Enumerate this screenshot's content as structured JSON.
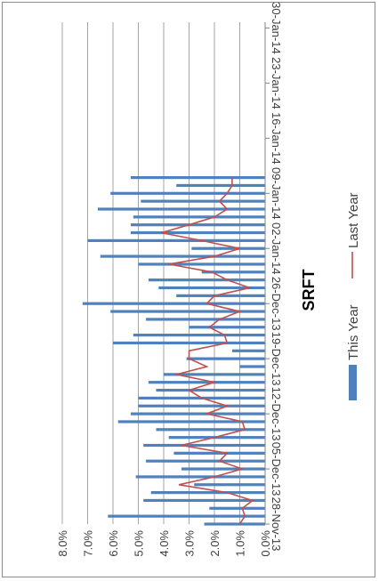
{
  "chart_data": {
    "type": "bar",
    "title": "SRFT",
    "orientation": "rotated-90",
    "x_ticks": [
      "28-Nov-13",
      "05-Dec-13",
      "12-Dec-13",
      "19-Dec-13",
      "26-Dec-13",
      "02-Jan-14",
      "09-Jan-14",
      "16-Jan-14",
      "23-Jan-14",
      "30-Jan-14"
    ],
    "y_ticks": [
      "0.0%",
      "1.0%",
      "2.0%",
      "3.0%",
      "4.0%",
      "5.0%",
      "6.0%",
      "7.0%",
      "8.0%"
    ],
    "ylim": [
      0,
      8
    ],
    "grid": true,
    "legend_position": "bottom",
    "colors": {
      "this_year": "#4f81bd",
      "last_year": "#c0504d",
      "grid": "#a6a6a6",
      "axis": "#868686",
      "text": "#404040"
    },
    "series": [
      {
        "name": "This Year",
        "type": "bar",
        "values": [
          2.4,
          6.2,
          2.2,
          4.8,
          4.5,
          2.8,
          5.1,
          3.3,
          4.7,
          3.6,
          4.8,
          3.8,
          4.3,
          5.8,
          5.3,
          5.0,
          5.0,
          4.3,
          4.6,
          4.0,
          1.0,
          3.1,
          1.3,
          6.0,
          5.2,
          3.0,
          4.7,
          6.1,
          7.2,
          3.5,
          4.2,
          4.6,
          2.5,
          5.0,
          6.5,
          2.9,
          7.0,
          5.3,
          5.3,
          5.2,
          6.6,
          4.9,
          6.1,
          3.5,
          5.3
        ]
      },
      {
        "name": "Last Year",
        "type": "line",
        "values": [
          1.0,
          0.8,
          0.9,
          0.5,
          1.5,
          3.4,
          2.0,
          0.9,
          1.8,
          1.5,
          3.3,
          2.0,
          0.8,
          0.9,
          2.3,
          1.5,
          2.5,
          3.0,
          2.0,
          3.5,
          2.3,
          3.0,
          3.0,
          1.5,
          1.6,
          2.2,
          1.8,
          1.0,
          2.3,
          2.0,
          0.6,
          1.5,
          2.1,
          3.8,
          2.0,
          1.0,
          2.5,
          4.1,
          3.0,
          2.0,
          1.5,
          1.8,
          1.5,
          1.3,
          1.3
        ]
      }
    ]
  }
}
